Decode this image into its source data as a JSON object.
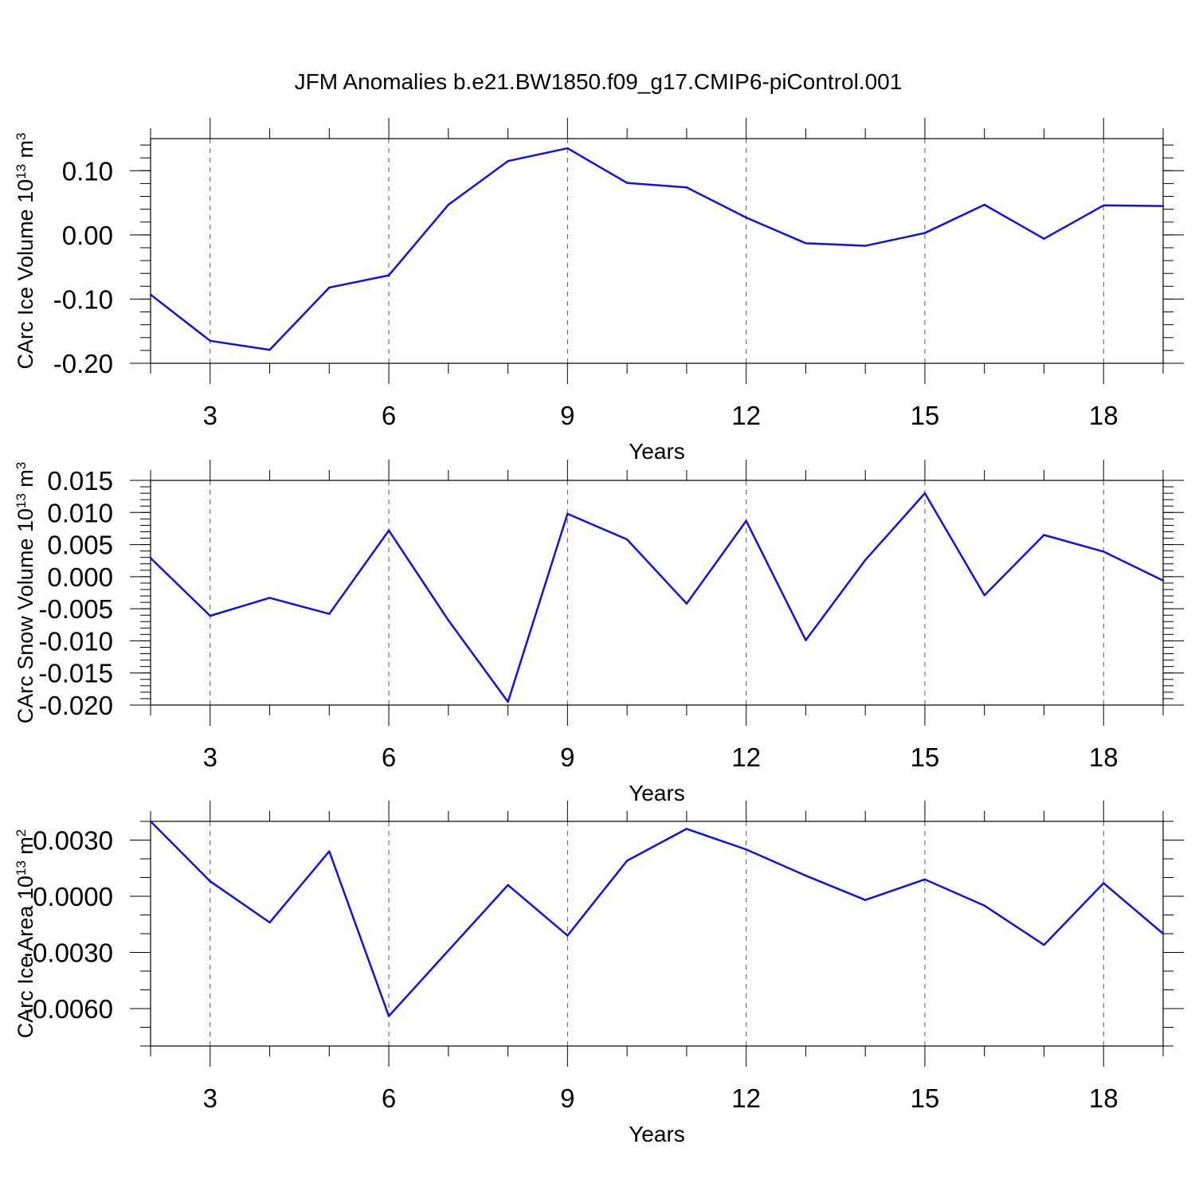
{
  "title": "JFM Anomalies b.e21.BW1850.f09_g17.CMIP6-piControl.001",
  "colors": {
    "line": "#1010ee",
    "axes": "#000000",
    "grid": "#555555"
  },
  "chart_data": [
    {
      "type": "line",
      "ylabel": "CArc Ice Volume 10",
      "ylabel_sup": "13",
      "ylabel_unit": " m",
      "ylabel_unit_sup": "3",
      "xlabel": "Years",
      "xlim": [
        2,
        19
      ],
      "ylim": [
        -0.2,
        0.15
      ],
      "xticks": [
        3,
        6,
        9,
        12,
        15,
        18
      ],
      "xtick_labels": [
        "3",
        "6",
        "9",
        "12",
        "15",
        "18"
      ],
      "yticks": [
        -0.2,
        -0.1,
        0.0,
        0.1
      ],
      "ytick_labels": [
        "-0.20",
        "-0.10",
        "0.00",
        "0.10"
      ],
      "yminor_step": 0.02,
      "grid": "vertical dashed at major x ticks",
      "x": [
        2,
        3,
        4,
        5,
        6,
        7,
        8,
        9,
        10,
        11,
        12,
        13,
        14,
        15,
        16,
        17,
        18,
        19
      ],
      "y": [
        -0.093,
        -0.165,
        -0.179,
        -0.082,
        -0.063,
        0.047,
        0.115,
        0.135,
        0.081,
        0.074,
        0.027,
        -0.013,
        -0.017,
        0.003,
        0.047,
        -0.006,
        0.046,
        0.045
      ]
    },
    {
      "type": "line",
      "ylabel": "CArc Snow Volume 10",
      "ylabel_sup": "13",
      "ylabel_unit": " m",
      "ylabel_unit_sup": "3",
      "xlabel": "Years",
      "xlim": [
        2,
        19
      ],
      "ylim": [
        -0.02,
        0.015
      ],
      "xticks": [
        3,
        6,
        9,
        12,
        15,
        18
      ],
      "xtick_labels": [
        "3",
        "6",
        "9",
        "12",
        "15",
        "18"
      ],
      "yticks": [
        -0.02,
        -0.015,
        -0.01,
        -0.005,
        0.0,
        0.005,
        0.01,
        0.015
      ],
      "ytick_labels": [
        "-0.020",
        "-0.015",
        "-0.010",
        "-0.005",
        "0.000",
        "0.005",
        "0.010",
        "0.015"
      ],
      "yminor_step": 0.001,
      "grid": "vertical dashed at major x ticks",
      "x": [
        2,
        3,
        4,
        5,
        6,
        7,
        8,
        9,
        10,
        11,
        12,
        13,
        14,
        15,
        16,
        17,
        18,
        19
      ],
      "y": [
        0.0029,
        -0.0061,
        -0.0033,
        -0.0058,
        0.0072,
        -0.0068,
        -0.0195,
        0.0098,
        0.0058,
        -0.0042,
        0.0087,
        -0.0099,
        0.0026,
        0.013,
        -0.0029,
        0.0065,
        0.0039,
        -0.0006
      ]
    },
    {
      "type": "line",
      "ylabel": "CArc Ice Area 10",
      "ylabel_sup": "13",
      "ylabel_unit": " m",
      "ylabel_unit_sup": "2",
      "xlabel": "Years",
      "xlim": [
        2,
        19
      ],
      "ylim": [
        -0.008,
        0.004
      ],
      "xticks": [
        3,
        6,
        9,
        12,
        15,
        18
      ],
      "xtick_labels": [
        "3",
        "6",
        "9",
        "12",
        "15",
        "18"
      ],
      "yticks": [
        -0.006,
        -0.003,
        0.0,
        0.003
      ],
      "ytick_labels": [
        "-0.0060",
        "-0.0030",
        "0.0000",
        "0.0030"
      ],
      "yminor_step": 0.001,
      "grid": "vertical dashed at major x ticks",
      "x": [
        2,
        3,
        4,
        5,
        6,
        7,
        8,
        9,
        10,
        11,
        12,
        13,
        14,
        15,
        16,
        17,
        18,
        19
      ],
      "y": [
        0.004,
        0.0008,
        -0.0014,
        0.0024,
        -0.0064,
        -0.0029,
        0.0006,
        -0.0021,
        0.0019,
        0.0036,
        0.0025,
        0.0011,
        -0.0002,
        0.0009,
        -0.0005,
        -0.0026,
        0.0007,
        -0.002
      ]
    }
  ]
}
